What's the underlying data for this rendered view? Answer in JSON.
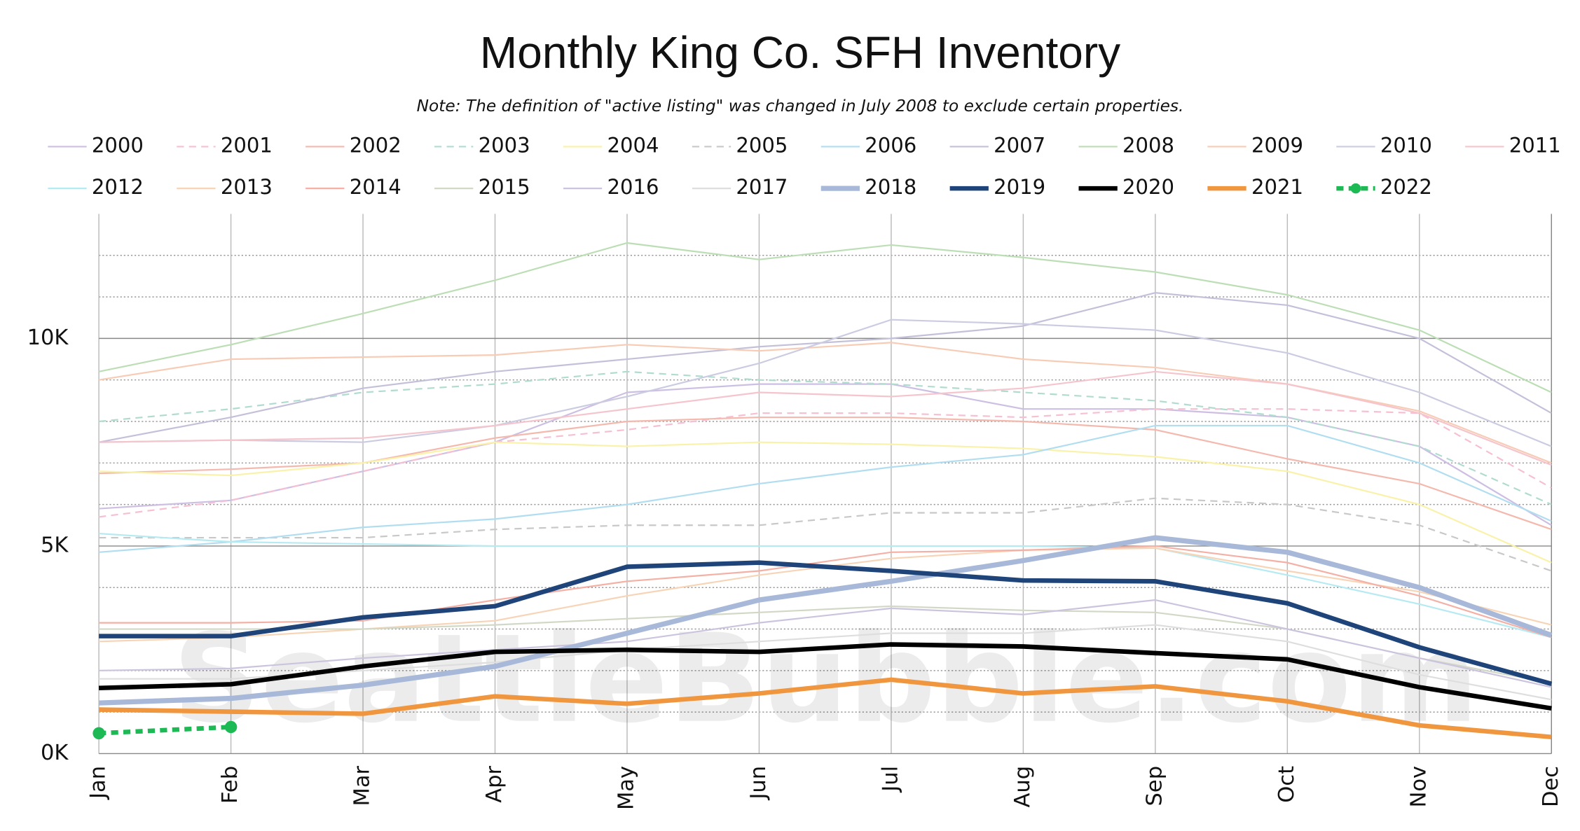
{
  "chart_data": {
    "type": "line",
    "title": "Monthly King Co. SFH Inventory",
    "subtitle": "Note: The definition of \"active listing\" was changed in July 2008 to exclude certain properties.",
    "watermark": "SeattleBubble.com",
    "categories": [
      "Jan",
      "Feb",
      "Mar",
      "Apr",
      "May",
      "Jun",
      "Jul",
      "Aug",
      "Sep",
      "Oct",
      "Nov",
      "Dec"
    ],
    "ylim": [
      0,
      13000
    ],
    "yticks": [
      {
        "value": 0,
        "label": "0K"
      },
      {
        "value": 5000,
        "label": "5K"
      },
      {
        "value": 10000,
        "label": "10K"
      }
    ],
    "minor_yticks": [
      1000,
      2000,
      3000,
      4000,
      6000,
      7000,
      8000,
      9000,
      11000,
      12000
    ],
    "grid": true,
    "legend": "top",
    "series": [
      {
        "name": "2000",
        "color": "#cdbfe3",
        "width": 1.5,
        "dashed": false,
        "values": [
          5900,
          6100,
          6800,
          7500,
          8700,
          8900,
          8900,
          8300,
          8300,
          8100,
          7400,
          5500
        ]
      },
      {
        "name": "2001",
        "color": "#f6bfd2",
        "width": 1.5,
        "dashed": true,
        "values": [
          5700,
          6100,
          6800,
          7500,
          7800,
          8200,
          8200,
          8100,
          8300,
          8300,
          8200,
          6400
        ]
      },
      {
        "name": "2002",
        "color": "#f4b8ad",
        "width": 1.5,
        "dashed": false,
        "values": [
          6750,
          6850,
          7000,
          7600,
          8000,
          8100,
          8100,
          8000,
          7800,
          7100,
          6500,
          5400
        ]
      },
      {
        "name": "2003",
        "color": "#b0dcd0",
        "width": 1.5,
        "dashed": true,
        "values": [
          8000,
          8300,
          8700,
          8900,
          9200,
          9000,
          8900,
          8700,
          8500,
          8100,
          7400,
          6000
        ]
      },
      {
        "name": "2004",
        "color": "#f9f2a8",
        "width": 1.5,
        "dashed": false,
        "values": [
          6800,
          6700,
          7000,
          7500,
          7400,
          7500,
          7450,
          7350,
          7150,
          6800,
          6000,
          4600
        ]
      },
      {
        "name": "2005",
        "color": "#c8c8c8",
        "width": 1.5,
        "dashed": true,
        "values": [
          5200,
          5200,
          5200,
          5400,
          5500,
          5500,
          5800,
          5800,
          6150,
          6000,
          5500,
          4400
        ]
      },
      {
        "name": "2006",
        "color": "#b0def0",
        "width": 1.5,
        "dashed": false,
        "values": [
          4850,
          5100,
          5450,
          5650,
          6000,
          6500,
          6900,
          7200,
          7900,
          7900,
          7000,
          5600
        ]
      },
      {
        "name": "2007",
        "color": "#c4c0da",
        "width": 1.5,
        "dashed": false,
        "values": [
          7500,
          8100,
          8800,
          9200,
          9500,
          9800,
          10000,
          10300,
          11100,
          10800,
          10000,
          8200
        ]
      },
      {
        "name": "2008",
        "color": "#bcdeb4",
        "width": 1.5,
        "dashed": false,
        "values": [
          9200,
          9850,
          10600,
          11400,
          12300,
          11900,
          12250,
          11950,
          11600,
          11050,
          10200,
          8700
        ]
      },
      {
        "name": "2009",
        "color": "#f8cbb4",
        "width": 1.5,
        "dashed": false,
        "values": [
          9000,
          9500,
          9550,
          9600,
          9850,
          9700,
          9900,
          9500,
          9300,
          8900,
          8250,
          7000
        ]
      },
      {
        "name": "2010",
        "color": "#cbcbe2",
        "width": 1.5,
        "dashed": false,
        "values": [
          7500,
          7550,
          7500,
          7900,
          8600,
          9400,
          10450,
          10350,
          10200,
          9650,
          8700,
          7400
        ]
      },
      {
        "name": "2011",
        "color": "#f5c4cc",
        "width": 1.5,
        "dashed": false,
        "values": [
          7500,
          7550,
          7600,
          7900,
          8300,
          8700,
          8600,
          8800,
          9200,
          8900,
          8200,
          6950
        ]
      },
      {
        "name": "2012",
        "color": "#b6eaf2",
        "width": 1.5,
        "dashed": false,
        "values": [
          5300,
          5100,
          5050,
          5000,
          5000,
          5000,
          5000,
          5000,
          4950,
          4300,
          3600,
          2800
        ]
      },
      {
        "name": "2013",
        "color": "#f8d4b6",
        "width": 1.5,
        "dashed": false,
        "values": [
          2700,
          2800,
          3000,
          3200,
          3800,
          4300,
          4700,
          4900,
          4950,
          4400,
          3900,
          3100
        ]
      },
      {
        "name": "2014",
        "color": "#f4b0a4",
        "width": 1.5,
        "dashed": false,
        "values": [
          3150,
          3150,
          3200,
          3700,
          4150,
          4400,
          4850,
          4900,
          5000,
          4600,
          3800,
          2800
        ]
      },
      {
        "name": "2015",
        "color": "#d2d8c6",
        "width": 1.5,
        "dashed": false,
        "values": [
          3000,
          3000,
          3000,
          3100,
          3250,
          3400,
          3550,
          3450,
          3400,
          3000,
          2300,
          1700
        ]
      },
      {
        "name": "2016",
        "color": "#ccc4de",
        "width": 1.5,
        "dashed": false,
        "values": [
          2000,
          2050,
          2300,
          2500,
          2700,
          3150,
          3500,
          3350,
          3700,
          3000,
          2300,
          1600
        ]
      },
      {
        "name": "2017",
        "color": "#dedede",
        "width": 1.5,
        "dashed": false,
        "values": [
          1800,
          1800,
          2000,
          2200,
          2500,
          2700,
          2900,
          2900,
          3100,
          2700,
          1900,
          1300
        ]
      },
      {
        "name": "2018",
        "color": "#a8b8d8",
        "width": 5,
        "dashed": false,
        "values": [
          1220,
          1330,
          1650,
          2100,
          2900,
          3700,
          4150,
          4650,
          5200,
          4850,
          4000,
          2850
        ]
      },
      {
        "name": "2019",
        "color": "#1f4479",
        "width": 4.5,
        "dashed": false,
        "values": [
          2830,
          2830,
          3280,
          3550,
          4500,
          4600,
          4400,
          4170,
          4150,
          3620,
          2560,
          1680
        ]
      },
      {
        "name": "2020",
        "color": "#000000",
        "width": 4.5,
        "dashed": false,
        "values": [
          1580,
          1670,
          2100,
          2450,
          2500,
          2450,
          2630,
          2580,
          2420,
          2270,
          1600,
          1090
        ]
      },
      {
        "name": "2021",
        "color": "#f0963f",
        "width": 4.5,
        "dashed": false,
        "values": [
          1060,
          1010,
          960,
          1380,
          1200,
          1450,
          1780,
          1450,
          1620,
          1260,
          680,
          400
        ]
      },
      {
        "name": "2022",
        "color": "#1db954",
        "width": 4.5,
        "dashed": true,
        "markers": true,
        "values": [
          490,
          640,
          null,
          null,
          null,
          null,
          null,
          null,
          null,
          null,
          null,
          null
        ]
      }
    ]
  }
}
